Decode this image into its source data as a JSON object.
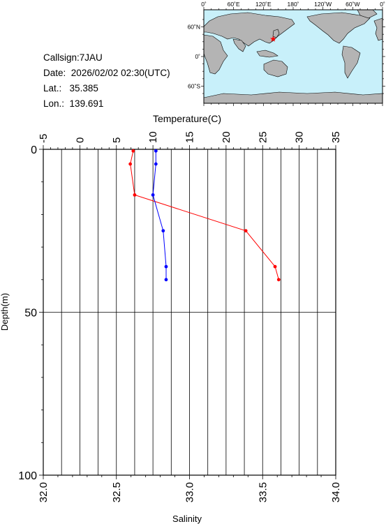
{
  "station": {
    "callsign_label": "Callsign:",
    "callsign": "7JAU",
    "date_label": "Date:",
    "date": "2026/02/02 02:30(UTC)",
    "lat_label": "Lat.:",
    "lat": "35.385",
    "lon_label": "Lon.:",
    "lon": "139.691"
  },
  "map": {
    "lon_ticks": [
      "0˚",
      "60˚E",
      "120˚E",
      "180˚",
      "120˚W",
      "60˚W",
      "0˚"
    ],
    "lat_ticks": [
      "60˚N",
      "0˚",
      "60˚S"
    ],
    "lat_values": [
      60,
      0,
      -60
    ],
    "marker": {
      "lon": 139.691,
      "lat": 35.385,
      "symbol": "star",
      "color": "#ff0000"
    },
    "ocean_color": "#c8f0fa",
    "land_color": "#b4b4b4"
  },
  "chart_data": {
    "type": "line",
    "top_axis": {
      "label": "Temperature(C)",
      "range": [
        -5,
        35
      ],
      "ticks": [
        "-5",
        "0",
        "5",
        "10",
        "15",
        "20",
        "25",
        "30",
        "35"
      ]
    },
    "bottom_axis": {
      "label": "Salinity",
      "range": [
        32.0,
        34.0
      ],
      "ticks": [
        "32.0",
        "32.5",
        "33.0",
        "33.5",
        "34.0"
      ]
    },
    "y_axis": {
      "label": "Depth(m)",
      "range": [
        0,
        100
      ],
      "inverted": true,
      "ticks": [
        "0",
        "50",
        "100"
      ]
    },
    "grid": "vertical every 2.5 temperature units; horizontal at 50 m",
    "series": [
      {
        "quantity": "temperature",
        "axis": "top",
        "color": "#ff0000",
        "points": [
          {
            "depth": 0.5,
            "value": 7.3
          },
          {
            "depth": 4.5,
            "value": 6.9
          },
          {
            "depth": 14,
            "value": 7.5
          },
          {
            "depth": 25,
            "value": 22.7
          },
          {
            "depth": 36,
            "value": 26.7
          },
          {
            "depth": 40,
            "value": 27.2
          }
        ]
      },
      {
        "quantity": "salinity",
        "axis": "bottom",
        "color": "#0000ff",
        "points": [
          {
            "depth": 0.5,
            "value": 32.77
          },
          {
            "depth": 4.5,
            "value": 32.77
          },
          {
            "depth": 14,
            "value": 32.75
          },
          {
            "depth": 25,
            "value": 32.82
          },
          {
            "depth": 36,
            "value": 32.84
          },
          {
            "depth": 40,
            "value": 32.84
          }
        ]
      }
    ]
  }
}
